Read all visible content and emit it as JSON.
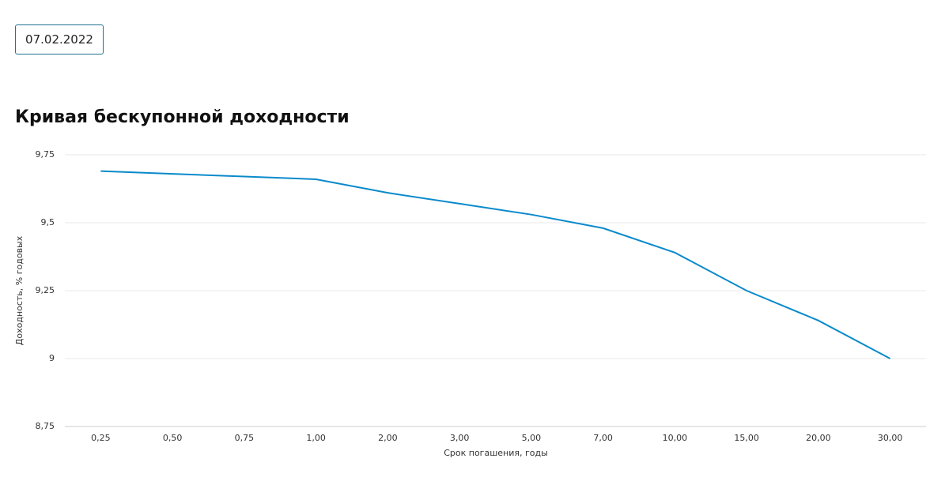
{
  "date": "07.02.2022",
  "chart_data": {
    "type": "line",
    "title": "Кривая бескупонной доходности",
    "x_label": "Срок погашения, годы",
    "y_label": "Доходность, % годовых",
    "categories": [
      "0,25",
      "0,50",
      "0,75",
      "1,00",
      "2,00",
      "3,00",
      "5,00",
      "7,00",
      "10,00",
      "15,00",
      "20,00",
      "30,00"
    ],
    "values": [
      9.69,
      9.68,
      9.67,
      9.66,
      9.61,
      9.57,
      9.53,
      9.48,
      9.39,
      9.25,
      9.14,
      9.0
    ],
    "color": "#0a8acb",
    "ylim": [
      8.75,
      9.75
    ],
    "yticks": [
      {
        "value": 8.75,
        "label": "8,75"
      },
      9,
      {
        "value": 9.25,
        "label": "9,25"
      },
      {
        "value": 9.5,
        "label": "9,5"
      },
      {
        "value": 9.75,
        "label": "9,75"
      }
    ],
    "grid": true
  }
}
